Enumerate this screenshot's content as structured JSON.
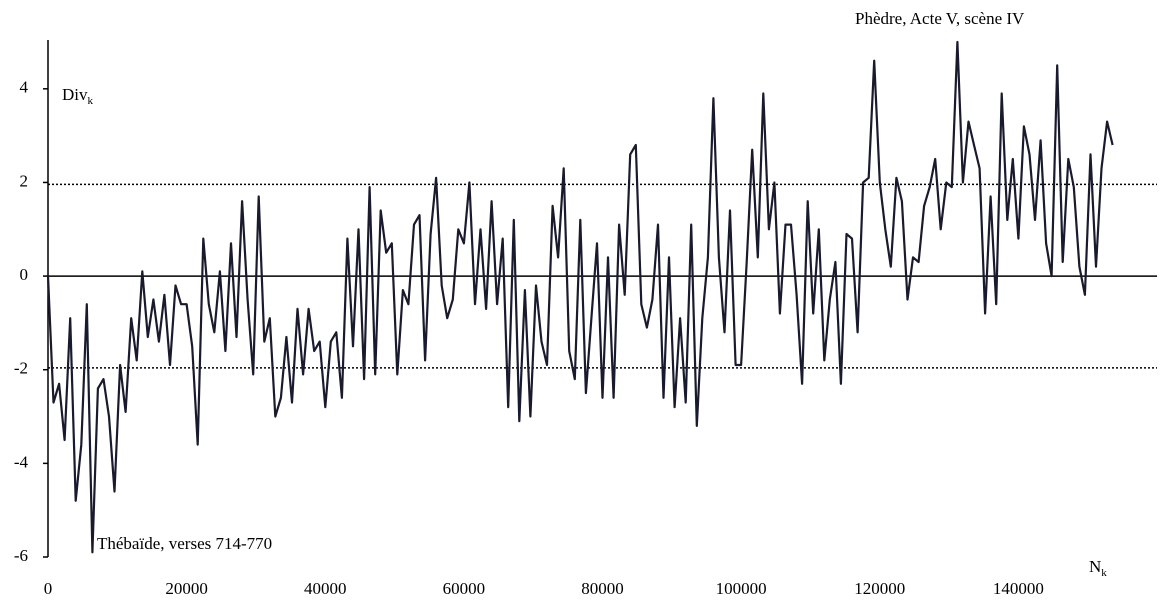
{
  "chart_data": {
    "type": "line",
    "y_label": {
      "text": "Div",
      "subscript": "k"
    },
    "x_label": {
      "text": "N",
      "subscript": "k"
    },
    "annotations": [
      "Phèdre, Acte V, scène IV",
      "Thébaïde, verses 714-770"
    ],
    "x": [
      0,
      800,
      1600,
      2400,
      3200,
      4000,
      4800,
      5600,
      6400,
      7200,
      8000,
      8800,
      9600,
      10400,
      11200,
      12000,
      12800,
      13600,
      14400,
      15200,
      16000,
      16800,
      17600,
      18400,
      19200,
      20000,
      20800,
      21600,
      22400,
      23200,
      24000,
      24800,
      25600,
      26400,
      27200,
      28000,
      28800,
      29600,
      30400,
      31200,
      32000,
      32800,
      33600,
      34400,
      35200,
      36000,
      36800,
      37600,
      38400,
      39200,
      40000,
      40800,
      41600,
      42400,
      43200,
      44000,
      44800,
      45600,
      46400,
      47200,
      48000,
      48800,
      49600,
      50400,
      51200,
      52000,
      52800,
      53600,
      54400,
      55200,
      56000,
      56800,
      57600,
      58400,
      59200,
      60000,
      60800,
      61600,
      62400,
      63200,
      64000,
      64800,
      65600,
      66400,
      67200,
      68000,
      68800,
      69600,
      70400,
      71200,
      72000,
      72800,
      73600,
      74400,
      75200,
      76000,
      76800,
      77600,
      78400,
      79200,
      80000,
      80800,
      81600,
      82400,
      83200,
      84000,
      84800,
      85600,
      86400,
      87200,
      88000,
      88800,
      89600,
      90400,
      91200,
      92000,
      92800,
      93600,
      94400,
      95200,
      96000,
      96800,
      97600,
      98400,
      99200,
      100000,
      100800,
      101600,
      102400,
      103200,
      104000,
      104800,
      105600,
      106400,
      107200,
      108000,
      108800,
      109600,
      110400,
      111200,
      112000,
      112800,
      113600,
      114400,
      115200,
      116000,
      116800,
      117600,
      118400,
      119200,
      120000,
      120800,
      121600,
      122400,
      123200,
      124000,
      124800,
      125600,
      126400,
      127200,
      128000,
      128800,
      129600,
      130400,
      131200,
      132000,
      132800,
      133600,
      134400,
      135200,
      136000,
      136800,
      137600,
      138400,
      139200,
      140000,
      140800,
      141600,
      142400,
      143200,
      144000,
      144800,
      145600,
      146400,
      147200,
      148000,
      148800,
      149600,
      150400,
      151200,
      152000,
      152800,
      153600
    ],
    "values": [
      0,
      -2.7,
      -2.3,
      -3.5,
      -0.9,
      -4.8,
      -3.6,
      -0.6,
      -5.9,
      -2.4,
      -2.2,
      -3.0,
      -4.6,
      -1.9,
      -2.9,
      -0.9,
      -1.8,
      0.1,
      -1.3,
      -0.5,
      -1.4,
      -0.4,
      -1.9,
      -0.2,
      -0.6,
      -0.6,
      -1.5,
      -3.6,
      0.8,
      -0.6,
      -1.2,
      0.1,
      -1.6,
      0.7,
      -1.3,
      1.6,
      -0.5,
      -2.1,
      1.7,
      -1.4,
      -0.9,
      -3.0,
      -2.6,
      -1.3,
      -2.7,
      -0.7,
      -2.1,
      -0.7,
      -1.6,
      -1.4,
      -2.8,
      -1.4,
      -1.2,
      -2.6,
      0.8,
      -1.5,
      1.0,
      -2.2,
      1.9,
      -2.1,
      1.4,
      0.5,
      0.7,
      -2.1,
      -0.3,
      -0.6,
      1.1,
      1.3,
      -1.8,
      0.9,
      2.1,
      -0.2,
      -0.9,
      -0.5,
      1.0,
      0.7,
      2.0,
      -0.6,
      1.0,
      -0.7,
      1.6,
      -0.6,
      0.8,
      -2.8,
      1.2,
      -3.1,
      -0.3,
      -3.0,
      -0.2,
      -1.4,
      -1.9,
      1.5,
      0.4,
      2.3,
      -1.6,
      -2.2,
      1.2,
      -2.5,
      -0.9,
      0.7,
      -2.6,
      0.4,
      -2.6,
      1.1,
      -0.4,
      2.6,
      2.8,
      -0.6,
      -1.1,
      -0.5,
      1.1,
      -2.6,
      0.4,
      -2.8,
      -0.9,
      -2.7,
      1.1,
      -3.2,
      -0.9,
      0.4,
      3.8,
      0.4,
      -1.2,
      1.4,
      -1.9,
      -1.9,
      0.3,
      2.7,
      0.4,
      3.9,
      1.0,
      2.0,
      -0.8,
      1.1,
      1.1,
      -0.4,
      -2.3,
      1.6,
      -0.8,
      1.0,
      -1.8,
      -0.5,
      0.3,
      -2.3,
      0.9,
      0.8,
      -1.2,
      2.0,
      2.1,
      4.6,
      2.0,
      1.0,
      0.2,
      2.1,
      1.6,
      -0.5,
      0.4,
      0.3,
      1.5,
      1.9,
      2.5,
      1.0,
      2.0,
      1.9,
      5.0,
      2.0,
      3.3,
      2.8,
      2.3,
      -0.8,
      1.7,
      -0.6,
      3.9,
      1.2,
      2.5,
      0.8,
      3.2,
      2.6,
      1.2,
      2.9,
      0.7,
      0.0,
      4.5,
      0.3,
      2.5,
      1.9,
      0.2,
      -0.4,
      2.6,
      0.2,
      2.3,
      3.3,
      2.8
    ],
    "color": "#1a1a2e",
    "reference_lines": [
      1.96,
      -1.96
    ],
    "xlim": [
      0,
      160000
    ],
    "xticks": [
      0,
      20000,
      40000,
      60000,
      80000,
      100000,
      120000,
      140000
    ],
    "ylim": [
      -6,
      5
    ],
    "yticks": [
      -6,
      -4,
      -2,
      0,
      2,
      4
    ]
  }
}
